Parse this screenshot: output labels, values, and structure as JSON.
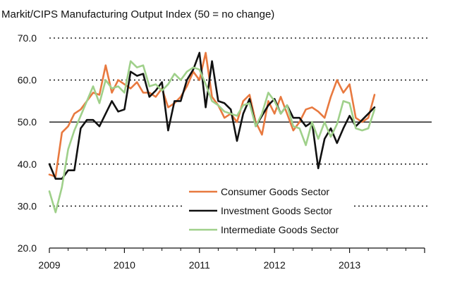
{
  "chart_data": {
    "type": "line",
    "title": "Markit/CIPS Manufacturing Output Index (50 = no change)",
    "xlabel": "",
    "ylabel": "",
    "ylim": [
      20,
      70
    ],
    "y_ticks": [
      "70.0",
      "60.0",
      "50.0",
      "40.0",
      "30.0",
      "20.0"
    ],
    "y_tick_values": [
      70,
      60,
      50,
      40,
      30,
      20
    ],
    "x_ticks": [
      "2009",
      "2010",
      "2011",
      "2012",
      "2013"
    ],
    "x_tick_values": [
      2009,
      2010,
      2011,
      2012,
      2013
    ],
    "xlim": [
      2009,
      2014
    ],
    "reference_line": 50,
    "grid": "dotted horizontal",
    "legend_position": "bottom-center",
    "x": [
      2009.0,
      2009.083,
      2009.167,
      2009.25,
      2009.333,
      2009.417,
      2009.5,
      2009.583,
      2009.667,
      2009.75,
      2009.833,
      2009.917,
      2010.0,
      2010.083,
      2010.167,
      2010.25,
      2010.333,
      2010.417,
      2010.5,
      2010.583,
      2010.667,
      2010.75,
      2010.833,
      2010.917,
      2011.0,
      2011.083,
      2011.167,
      2011.25,
      2011.333,
      2011.417,
      2011.5,
      2011.583,
      2011.667,
      2011.75,
      2011.833,
      2011.917,
      2012.0,
      2012.083,
      2012.167,
      2012.25,
      2012.333,
      2012.417,
      2012.5,
      2012.583,
      2012.667,
      2012.75,
      2012.833,
      2012.917,
      2013.0,
      2013.083,
      2013.167,
      2013.25,
      2013.333
    ],
    "series": [
      {
        "name": "Consumer Goods Sector",
        "color": "#e8793f",
        "values": [
          37.5,
          37.0,
          47.5,
          49.0,
          52.0,
          53.0,
          55.0,
          57.0,
          56.5,
          63.5,
          57.0,
          60.0,
          59.0,
          58.0,
          59.5,
          57.0,
          57.0,
          56.0,
          58.0,
          53.5,
          54.5,
          56.0,
          58.5,
          62.0,
          60.0,
          66.5,
          56.0,
          54.0,
          51.0,
          52.0,
          50.0,
          55.0,
          56.5,
          50.0,
          47.0,
          55.0,
          52.0,
          56.0,
          52.0,
          48.0,
          50.0,
          53.0,
          53.5,
          52.5,
          51.0,
          56.0,
          60.0,
          57.0,
          59.0,
          51.0,
          50.0,
          51.0,
          56.5
        ]
      },
      {
        "name": "Investment Goods Sector",
        "color": "#111111",
        "values": [
          40.0,
          36.5,
          36.5,
          38.5,
          38.5,
          48.5,
          50.5,
          50.5,
          49.0,
          52.0,
          55.0,
          52.5,
          53.0,
          62.0,
          61.0,
          61.5,
          56.0,
          57.5,
          59.5,
          48.0,
          55.0,
          55.0,
          60.0,
          62.5,
          66.5,
          53.5,
          64.5,
          55.0,
          54.5,
          53.0,
          45.5,
          52.0,
          55.5,
          49.0,
          51.5,
          54.0,
          55.5,
          52.0,
          54.0,
          51.0,
          51.0,
          49.0,
          50.0,
          39.0,
          46.0,
          48.5,
          45.0,
          48.5,
          51.5,
          49.0,
          50.5,
          52.0,
          53.5
        ]
      },
      {
        "name": "Intermediate Goods Sector",
        "color": "#9fd08a",
        "values": [
          33.5,
          28.5,
          34.5,
          43.5,
          48.0,
          51.5,
          55.0,
          58.5,
          54.5,
          60.0,
          58.0,
          58.5,
          57.0,
          64.5,
          63.0,
          63.5,
          58.5,
          59.0,
          57.5,
          59.0,
          61.5,
          60.0,
          62.0,
          63.0,
          62.5,
          59.0,
          55.0,
          54.0,
          52.5,
          52.0,
          51.5,
          54.0,
          54.5,
          49.0,
          52.0,
          57.0,
          55.0,
          52.0,
          54.0,
          49.0,
          48.5,
          44.5,
          50.0,
          46.0,
          50.0,
          46.5,
          49.5,
          55.0,
          54.5,
          48.5,
          48.0,
          48.5,
          53.0
        ]
      }
    ]
  }
}
